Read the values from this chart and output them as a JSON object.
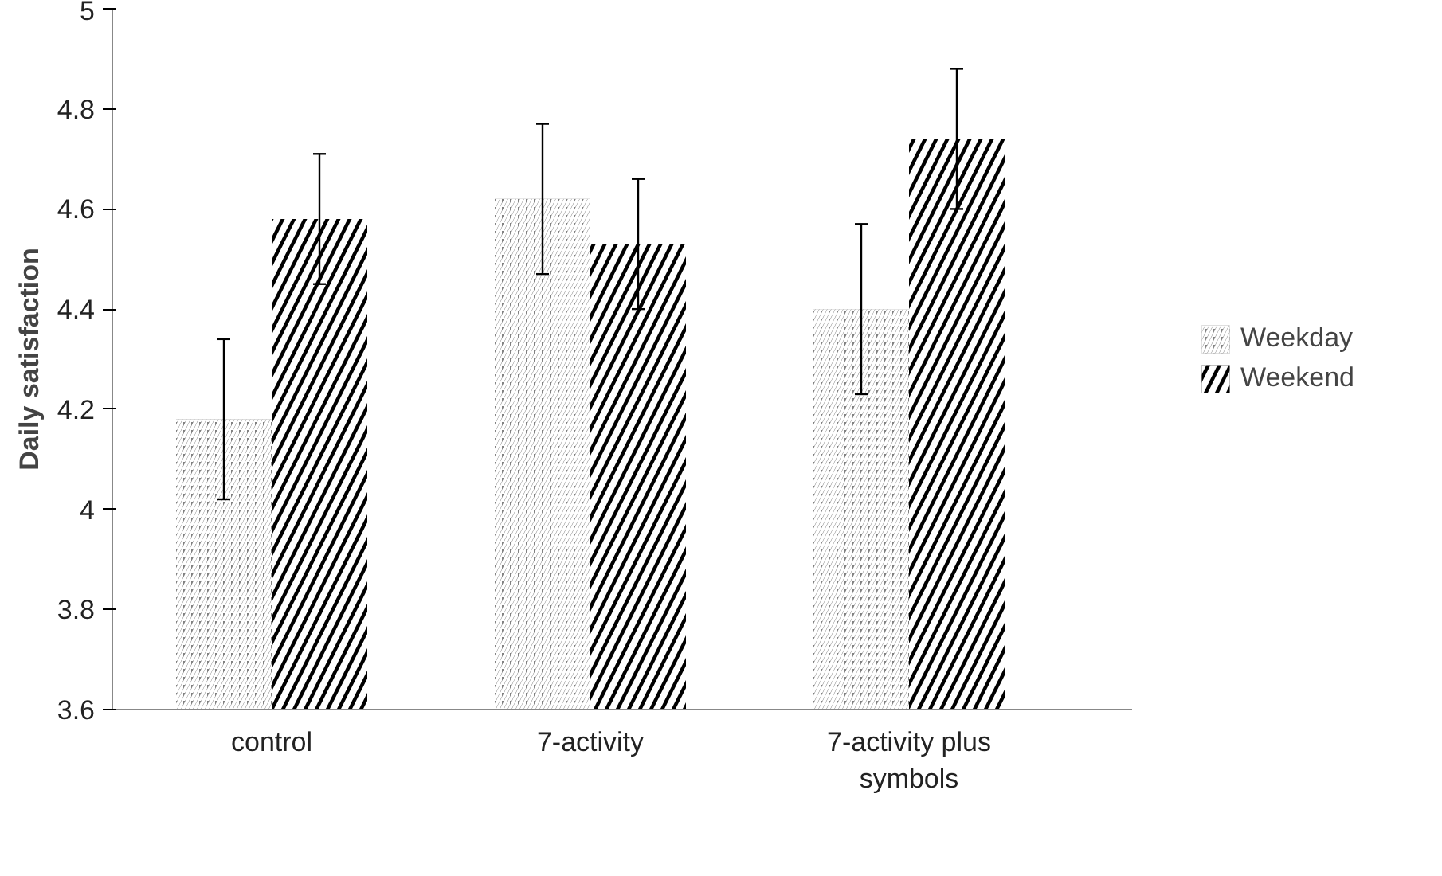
{
  "chart_data": {
    "type": "bar",
    "ylabel": "Daily satisfaction",
    "categories": [
      "control",
      "7-activity",
      "7-activity plus symbols"
    ],
    "series": [
      {
        "name": "Weekday",
        "color": "#808080",
        "values": [
          4.18,
          4.62,
          4.4
        ],
        "errors": [
          0.16,
          0.15,
          0.17
        ]
      },
      {
        "name": "Weekend",
        "color": "#000000",
        "values": [
          4.58,
          4.53,
          4.74
        ],
        "errors": [
          0.13,
          0.13,
          0.14
        ]
      }
    ],
    "ylim": [
      3.6,
      5
    ],
    "yticks": [
      3.6,
      3.8,
      4,
      4.2,
      4.4,
      4.6,
      4.8,
      5
    ],
    "grid": false,
    "legend": "right"
  }
}
